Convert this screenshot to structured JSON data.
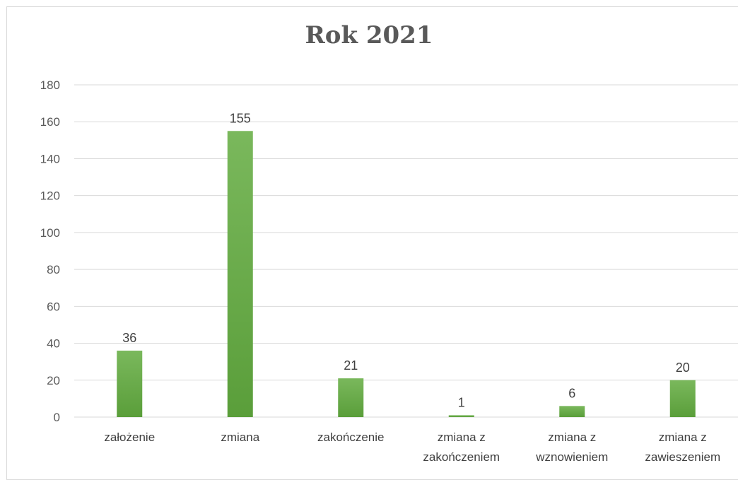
{
  "chart_data": {
    "type": "bar",
    "title": "Rok 2021",
    "categories": [
      [
        "założenie"
      ],
      [
        "zmiana"
      ],
      [
        "zakończenie"
      ],
      [
        "zmiana z",
        "zakończeniem"
      ],
      [
        "zmiana z",
        "wznowieniem"
      ],
      [
        "zmiana z",
        "zawieszeniem"
      ]
    ],
    "values": [
      36,
      155,
      21,
      1,
      6,
      20
    ],
    "ylim": [
      0,
      180
    ],
    "yticks": [
      0,
      20,
      40,
      60,
      80,
      100,
      120,
      140,
      160,
      180
    ],
    "grid": true,
    "bar_color_top": "#7ab85c",
    "bar_color_bottom": "#5a9e3a",
    "xlabel": "",
    "ylabel": ""
  }
}
